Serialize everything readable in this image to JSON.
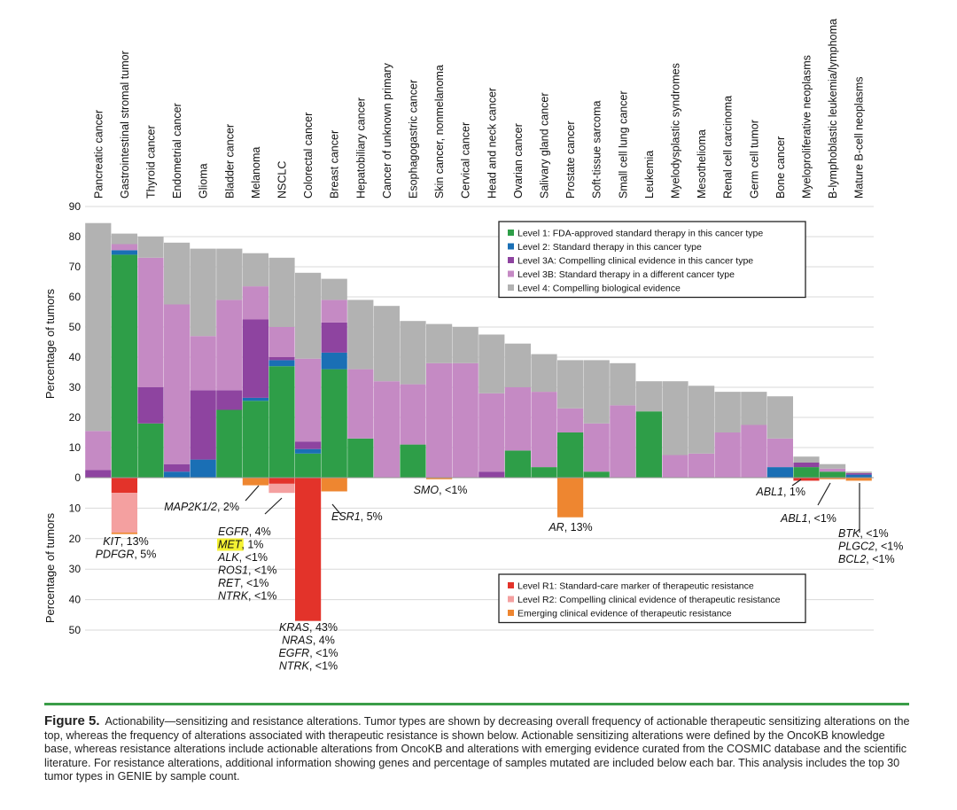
{
  "chart_data": {
    "type": "bar",
    "title": "",
    "ylabel_top": "Percentage of tumors",
    "ylabel_bottom": "Percentage of tumors",
    "ylim_top": [
      0,
      90
    ],
    "ylim_bottom": [
      0,
      50
    ],
    "yticks_top": [
      "90",
      "80",
      "70",
      "60",
      "50",
      "40",
      "30",
      "20",
      "10",
      "0"
    ],
    "yticks_bottom": [
      "10",
      "20",
      "30",
      "40",
      "50"
    ],
    "colors": {
      "level1": "#2e9e48",
      "level2": "#1a6fb5",
      "level3a": "#8e44a0",
      "level3b": "#c58ac4",
      "level4": "#b2b2b2",
      "r1": "#e3332a",
      "r2": "#f4a0a0",
      "emerging": "#ee8630"
    },
    "sensitizing_series_order": [
      "level1",
      "level2",
      "level3a",
      "level3b",
      "level4"
    ],
    "resistance_series_order": [
      "r1",
      "r2",
      "emerging"
    ],
    "categories": [
      {
        "name": "Pancreatic cancer",
        "level1": 0,
        "level2": 0,
        "level3a": 2.5,
        "level3b": 13,
        "level4": 69,
        "r1": 0,
        "r2": 0,
        "emerging": 0
      },
      {
        "name": "Gastrointestinal stromal tumor",
        "level1": 74,
        "level2": 1.5,
        "level3a": 0,
        "level3b": 2,
        "level4": 3.5,
        "r1": 5,
        "r2": 13,
        "emerging": 0.5
      },
      {
        "name": "Thyroid cancer",
        "level1": 18,
        "level2": 0,
        "level3a": 12,
        "level3b": 43,
        "level4": 7,
        "r1": 0,
        "r2": 0,
        "emerging": 0
      },
      {
        "name": "Endometrial cancer",
        "level1": 0,
        "level2": 2,
        "level3a": 2.5,
        "level3b": 53,
        "level4": 20.5,
        "r1": 0,
        "r2": 0,
        "emerging": 0
      },
      {
        "name": "Glioma",
        "level1": 0,
        "level2": 6,
        "level3a": 23,
        "level3b": 18,
        "level4": 29,
        "r1": 0,
        "r2": 0,
        "emerging": 0
      },
      {
        "name": "Bladder cancer",
        "level1": 22.5,
        "level2": 0,
        "level3a": 6.5,
        "level3b": 30,
        "level4": 17,
        "r1": 0,
        "r2": 0,
        "emerging": 0
      },
      {
        "name": "Melanoma",
        "level1": 25.5,
        "level2": 1,
        "level3a": 26,
        "level3b": 11,
        "level4": 11,
        "r1": 0,
        "r2": 0,
        "emerging": 2.5
      },
      {
        "name": "NSCLC",
        "level1": 37,
        "level2": 2,
        "level3a": 1,
        "level3b": 10,
        "level4": 23,
        "r1": 2,
        "r2": 3,
        "emerging": 0
      },
      {
        "name": "Colorectal cancer",
        "level1": 8,
        "level2": 1.5,
        "level3a": 2.5,
        "level3b": 27.5,
        "level4": 28.5,
        "r1": 47,
        "r2": 0,
        "emerging": 0
      },
      {
        "name": "Breast cancer",
        "level1": 36,
        "level2": 5.5,
        "level3a": 10,
        "level3b": 7.5,
        "level4": 7,
        "r1": 0,
        "r2": 0,
        "emerging": 4.5
      },
      {
        "name": "Hepatobiliary cancer",
        "level1": 13,
        "level2": 0,
        "level3a": 0,
        "level3b": 23,
        "level4": 23,
        "r1": 0,
        "r2": 0,
        "emerging": 0
      },
      {
        "name": "Cancer of unknown primary",
        "level1": 0,
        "level2": 0,
        "level3a": 0,
        "level3b": 32,
        "level4": 25,
        "r1": 0,
        "r2": 0,
        "emerging": 0
      },
      {
        "name": "Esophagogastric cancer",
        "level1": 11,
        "level2": 0,
        "level3a": 0,
        "level3b": 20,
        "level4": 21,
        "r1": 0,
        "r2": 0,
        "emerging": 0
      },
      {
        "name": "Skin cancer, nonmelanoma",
        "level1": 0,
        "level2": 0,
        "level3a": 0,
        "level3b": 38,
        "level4": 13,
        "r1": 0,
        "r2": 0,
        "emerging": 0.5
      },
      {
        "name": "Cervical cancer",
        "level1": 0,
        "level2": 0,
        "level3a": 0,
        "level3b": 38,
        "level4": 12,
        "r1": 0,
        "r2": 0,
        "emerging": 0
      },
      {
        "name": "Head and neck cancer",
        "level1": 0,
        "level2": 0,
        "level3a": 2,
        "level3b": 26,
        "level4": 19.5,
        "r1": 0,
        "r2": 0,
        "emerging": 0
      },
      {
        "name": "Ovarian cancer",
        "level1": 9,
        "level2": 0,
        "level3a": 0,
        "level3b": 21,
        "level4": 14.5,
        "r1": 0,
        "r2": 0,
        "emerging": 0
      },
      {
        "name": "Salivary gland cancer",
        "level1": 3.5,
        "level2": 0,
        "level3a": 0,
        "level3b": 25,
        "level4": 12.5,
        "r1": 0,
        "r2": 0,
        "emerging": 0
      },
      {
        "name": "Prostate cancer",
        "level1": 15,
        "level2": 0,
        "level3a": 0,
        "level3b": 8,
        "level4": 16,
        "r1": 0,
        "r2": 0,
        "emerging": 13
      },
      {
        "name": "Soft-tissue sarcoma",
        "level1": 2,
        "level2": 0,
        "level3a": 0,
        "level3b": 16,
        "level4": 21,
        "r1": 0,
        "r2": 0,
        "emerging": 0
      },
      {
        "name": "Small cell lung cancer",
        "level1": 0,
        "level2": 0,
        "level3a": 0,
        "level3b": 24,
        "level4": 14,
        "r1": 0,
        "r2": 0,
        "emerging": 0
      },
      {
        "name": "Leukemia",
        "level1": 22,
        "level2": 0,
        "level3a": 0,
        "level3b": 0,
        "level4": 10,
        "r1": 0,
        "r2": 0,
        "emerging": 0
      },
      {
        "name": "Myelodysplastic syndromes",
        "level1": 0,
        "level2": 0,
        "level3a": 0,
        "level3b": 7.5,
        "level4": 24.5,
        "r1": 0,
        "r2": 0,
        "emerging": 0
      },
      {
        "name": "Mesothelioma",
        "level1": 0,
        "level2": 0,
        "level3a": 0,
        "level3b": 8,
        "level4": 22.5,
        "r1": 0,
        "r2": 0,
        "emerging": 0
      },
      {
        "name": "Renal cell carcinoma",
        "level1": 0,
        "level2": 0,
        "level3a": 0,
        "level3b": 15,
        "level4": 13.5,
        "r1": 0,
        "r2": 0,
        "emerging": 0
      },
      {
        "name": "Germ cell tumor",
        "level1": 0,
        "level2": 0,
        "level3a": 0,
        "level3b": 17.5,
        "level4": 11,
        "r1": 0,
        "r2": 0,
        "emerging": 0
      },
      {
        "name": "Bone cancer",
        "level1": 0,
        "level2": 3.5,
        "level3a": 0,
        "level3b": 9.5,
        "level4": 14,
        "r1": 0,
        "r2": 0,
        "emerging": 0
      },
      {
        "name": "Myeloproliferative neoplasms",
        "level1": 3.5,
        "level2": 0,
        "level3a": 1.5,
        "level3b": 0,
        "level4": 2,
        "r1": 1,
        "r2": 0,
        "emerging": 0
      },
      {
        "name": "B-lymphoblastic leukemia/lymphoma",
        "level1": 2,
        "level2": 0,
        "level3a": 0,
        "level3b": 1,
        "level4": 1.5,
        "r1": 0,
        "r2": 0,
        "emerging": 0.5
      },
      {
        "name": "Mature B-cell neoplasms",
        "level1": 0,
        "level2": 1,
        "level3a": 0.5,
        "level3b": 0,
        "level4": 0.5,
        "r1": 0,
        "r2": 0,
        "emerging": 1
      }
    ],
    "legend_top": [
      {
        "key": "level1",
        "label": "Level 1: FDA-approved standard therapy in this cancer type"
      },
      {
        "key": "level2",
        "label": "Level 2: Standard therapy in this cancer type"
      },
      {
        "key": "level3a",
        "label": "Level 3A: Compelling clinical evidence in this cancer type"
      },
      {
        "key": "level3b",
        "label": "Level 3B: Standard therapy in a different cancer type"
      },
      {
        "key": "level4",
        "label": "Level 4: Compelling biological evidence"
      }
    ],
    "legend_bottom": [
      {
        "key": "r1",
        "label": "Level R1: Standard-care marker of therapeutic resistance"
      },
      {
        "key": "r2",
        "label": "Level R2: Compelling clinical evidence of therapeutic resistance"
      },
      {
        "key": "emerging",
        "label": "Emerging clinical evidence of therapeutic resistance"
      }
    ],
    "annotations": [
      {
        "id": "gist",
        "lines": [
          {
            "gene": "KIT",
            "pct": ", 13%"
          },
          {
            "gene": "PDFGR",
            "pct": ", 5%"
          }
        ]
      },
      {
        "id": "melanoma",
        "lines": [
          {
            "gene": "MAP2K1/2",
            "pct": ", 2%"
          }
        ]
      },
      {
        "id": "nsclc",
        "lines": [
          {
            "gene": "EGFR",
            "pct": ", 4%"
          },
          {
            "gene": "MET",
            "pct": ", 1%",
            "highlight": true
          },
          {
            "gene": "ALK",
            "pct": ", <1%"
          },
          {
            "gene": "ROS1",
            "pct": ", <1%"
          },
          {
            "gene": "RET",
            "pct": ", <1%"
          },
          {
            "gene": "NTRK",
            "pct": ", <1%"
          }
        ]
      },
      {
        "id": "colorectal",
        "lines": [
          {
            "gene": "KRAS",
            "pct": ", 43%"
          },
          {
            "gene": "NRAS",
            "pct": ", 4%"
          },
          {
            "gene": "EGFR",
            "pct": ", <1%"
          },
          {
            "gene": "NTRK",
            "pct": ", <1%"
          }
        ]
      },
      {
        "id": "breast",
        "lines": [
          {
            "gene": "ESR1",
            "pct": ", 5%"
          }
        ]
      },
      {
        "id": "skin",
        "lines": [
          {
            "gene": "SMO",
            "pct": ", <1%"
          }
        ]
      },
      {
        "id": "prostate",
        "lines": [
          {
            "gene": "AR",
            "pct": ", 13%"
          }
        ]
      },
      {
        "id": "mpn",
        "lines": [
          {
            "gene": "ABL1",
            "pct": ", 1%"
          }
        ]
      },
      {
        "id": "bll",
        "lines": [
          {
            "gene": "ABL1",
            "pct": ", <1%"
          }
        ]
      },
      {
        "id": "mbcn",
        "lines": [
          {
            "gene": "BTK",
            "pct": ", <1%"
          },
          {
            "gene": "PLGC2",
            "pct": ", <1%"
          },
          {
            "gene": "BCL2",
            "pct": ", <1%"
          }
        ]
      }
    ]
  },
  "caption": {
    "label": "Figure 5.",
    "text": "Actionability—sensitizing and resistance alterations. Tumor types are shown by decreasing overall frequency of actionable therapeutic sensitizing alterations on the top, whereas the frequency of alterations associated with therapeutic resistance is shown below. Actionable sensitizing alterations were defined by the OncoKB knowledge base, whereas resistance alterations include actionable alterations from OncoKB and alterations with emerging evidence curated from the COSMIC database and the scientific literature. For resistance alterations, additional information showing genes and percentage of samples mutated are included below each bar. This analysis includes the top 30 tumor types in GENIE by sample count."
  }
}
